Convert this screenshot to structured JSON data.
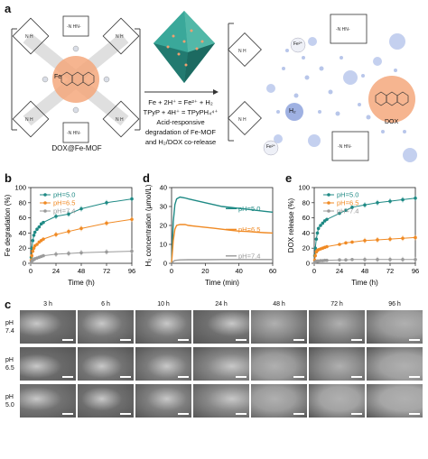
{
  "panels": {
    "a": "a",
    "b": "b",
    "c": "c",
    "d": "d",
    "e": "e"
  },
  "schematic": {
    "left_caption": "DOX@Fe-MOF",
    "equation_1": "Fe + 2H⁺ = Fe²⁺ + H₂",
    "equation_2": "TPyP + 4H⁺ = TPyPH₄⁴⁺",
    "arrow_caption_1": "Acid-responsive",
    "arrow_caption_2": "degradation of Fe-MOF",
    "arrow_caption_3": "and H₂/DOX co-release",
    "h2_label": "H₂",
    "dox_label": "DOX",
    "fe2_label": "Fe²⁺",
    "fe_label": "Fe",
    "colors": {
      "dox": "#f4a87c",
      "h2": "#b8c6ea",
      "crystal": "#3aa89a"
    }
  },
  "chart_data": [
    {
      "panel": "b",
      "type": "line",
      "xlabel": "Time (h)",
      "ylabel": "Fe degradation (%)",
      "xlim": [
        0,
        96
      ],
      "ylim": [
        0,
        100
      ],
      "xticks": [
        0,
        24,
        48,
        72,
        96
      ],
      "yticks": [
        0,
        20,
        40,
        60,
        80,
        100
      ],
      "series": [
        {
          "name": "pH=5.0",
          "color": "#1f8a85",
          "x": [
            0.5,
            1,
            2,
            3,
            4,
            6,
            8,
            10,
            12,
            24,
            36,
            48,
            72,
            96
          ],
          "y": [
            8,
            20,
            30,
            37,
            41,
            45,
            48,
            52,
            54,
            62,
            65,
            72,
            80,
            85
          ]
        },
        {
          "name": "pH=6.5",
          "color": "#f08a24",
          "x": [
            0.5,
            1,
            2,
            3,
            4,
            6,
            8,
            10,
            12,
            24,
            36,
            48,
            72,
            96
          ],
          "y": [
            4,
            10,
            16,
            20,
            23,
            25,
            28,
            30,
            32,
            38,
            42,
            46,
            53,
            58
          ]
        },
        {
          "name": "pH=7.4",
          "color": "#9a9a9a",
          "x": [
            0.5,
            1,
            2,
            3,
            4,
            6,
            8,
            10,
            12,
            24,
            36,
            48,
            72,
            96
          ],
          "y": [
            1,
            3,
            4,
            5,
            6,
            7,
            8,
            9,
            10,
            12,
            13,
            14,
            15,
            16
          ]
        }
      ]
    },
    {
      "panel": "d",
      "type": "line",
      "xlabel": "Time (min)",
      "ylabel": "H₂ concentration (μmol/L)",
      "xlim": [
        0,
        60
      ],
      "ylim": [
        0,
        40
      ],
      "xticks": [
        0,
        20,
        40,
        60
      ],
      "yticks": [
        0,
        10,
        20,
        30,
        40
      ],
      "series": [
        {
          "name": "pH=5.0",
          "color": "#1f8a85",
          "x": [
            0,
            1,
            2,
            3,
            5,
            8,
            10,
            15,
            20,
            25,
            30,
            35,
            40,
            45,
            50,
            55,
            60
          ],
          "y": [
            0,
            22,
            31,
            34,
            35,
            34.5,
            34,
            33,
            32,
            31,
            30,
            29.5,
            29,
            28.5,
            28,
            27.5,
            27
          ]
        },
        {
          "name": "pH=6.5",
          "color": "#f08a24",
          "x": [
            0,
            1,
            2,
            3,
            5,
            8,
            10,
            15,
            20,
            25,
            30,
            35,
            40,
            45,
            50,
            55,
            60
          ],
          "y": [
            0,
            12,
            18,
            20,
            20.5,
            20.5,
            20,
            19.5,
            19,
            18.5,
            18,
            17.5,
            17,
            16.8,
            16.5,
            16.2,
            16
          ]
        },
        {
          "name": "pH=7.4",
          "color": "#9a9a9a",
          "x": [
            0,
            1,
            2,
            5,
            10,
            20,
            30,
            40,
            50,
            60
          ],
          "y": [
            0,
            1,
            1.5,
            1.8,
            1.9,
            1.9,
            2.0,
            2.0,
            2.0,
            2.0
          ]
        }
      ]
    },
    {
      "panel": "e",
      "type": "line",
      "xlabel": "Time (h)",
      "ylabel": "DOX release (%)",
      "xlim": [
        0,
        96
      ],
      "ylim": [
        0,
        100
      ],
      "xticks": [
        0,
        24,
        48,
        72,
        96
      ],
      "yticks": [
        0,
        20,
        40,
        60,
        80,
        100
      ],
      "series": [
        {
          "name": "pH=5.0",
          "color": "#1f8a85",
          "x": [
            0.5,
            1,
            2,
            3,
            4,
            6,
            8,
            10,
            12,
            24,
            30,
            36,
            48,
            60,
            72,
            84,
            96
          ],
          "y": [
            10,
            20,
            32,
            40,
            46,
            50,
            53,
            56,
            58,
            66,
            70,
            74,
            77,
            80,
            82,
            84,
            86
          ]
        },
        {
          "name": "pH=6.5",
          "color": "#f08a24",
          "x": [
            0.5,
            1,
            2,
            3,
            4,
            6,
            8,
            10,
            12,
            24,
            30,
            36,
            48,
            60,
            72,
            84,
            96
          ],
          "y": [
            4,
            10,
            15,
            17,
            18,
            19,
            20,
            21,
            22,
            25,
            27,
            28,
            30,
            31,
            32,
            33,
            34
          ]
        },
        {
          "name": "pH=7.4",
          "color": "#9a9a9a",
          "x": [
            0.5,
            1,
            2,
            3,
            4,
            6,
            8,
            10,
            12,
            24,
            30,
            36,
            48,
            60,
            72,
            84,
            96
          ],
          "y": [
            1,
            2,
            2.5,
            3,
            3,
            3.5,
            3.5,
            4,
            4,
            4.5,
            4.5,
            5,
            5,
            5,
            5,
            5,
            5
          ]
        }
      ]
    }
  ],
  "sem": {
    "columns": [
      "3 h",
      "6 h",
      "10 h",
      "24 h",
      "48 h",
      "72 h",
      "96 h"
    ],
    "rows": [
      {
        "ph_label": "pH",
        "ph_value": "7.4"
      },
      {
        "ph_label": "pH",
        "ph_value": "6.5"
      },
      {
        "ph_label": "pH",
        "ph_value": "5.0"
      }
    ]
  }
}
